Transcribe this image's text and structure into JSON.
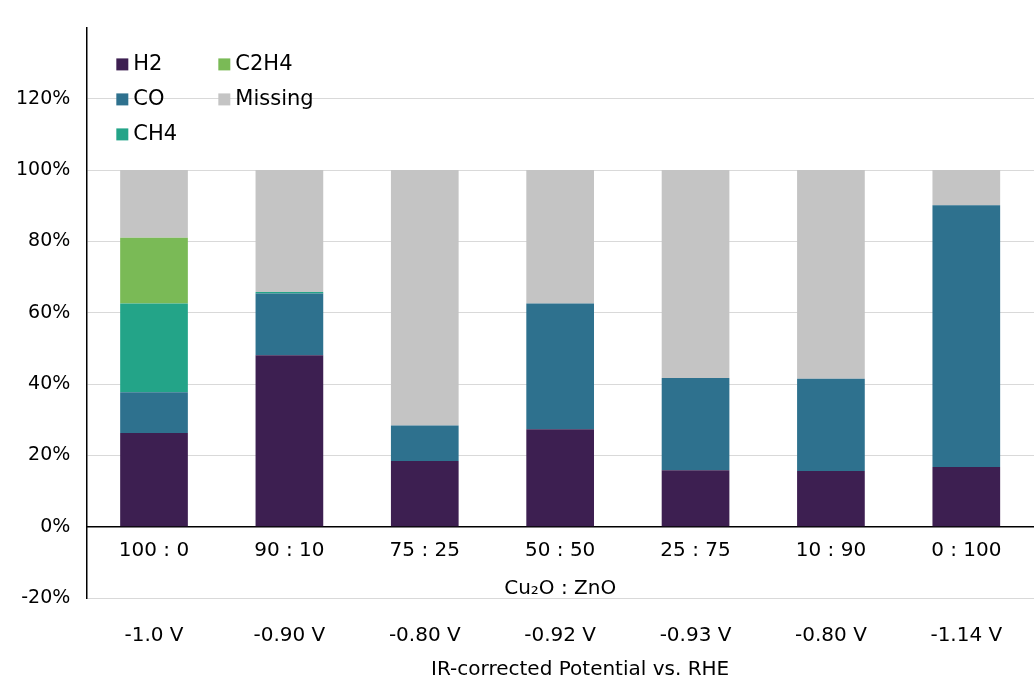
{
  "chart_data": {
    "type": "bar",
    "stacked": true,
    "xlabel": "Cu₂O : ZnO",
    "categories": [
      "100 : 0",
      "90 : 10",
      "75 : 25",
      "50 : 50",
      "25 : 75",
      "10 : 90",
      "0 : 100"
    ],
    "series": [
      {
        "name": "H2",
        "color": "#3d1f51",
        "values": [
          26.3,
          48.1,
          18.4,
          27.3,
          15.8,
          15.6,
          16.7
        ]
      },
      {
        "name": "CO",
        "color": "#2e718e",
        "values": [
          11.4,
          17.3,
          10.0,
          35.3,
          25.9,
          25.9,
          73.4
        ]
      },
      {
        "name": "CH4",
        "color": "#23a488",
        "values": [
          24.9,
          0.4,
          null,
          null,
          null,
          null,
          null
        ]
      },
      {
        "name": "C2H4",
        "color": "#7aba56",
        "values": [
          18.4,
          null,
          null,
          null,
          null,
          null,
          null
        ]
      },
      {
        "name": "Missing",
        "color": "#c4c4c4",
        "values": [
          19.0,
          34.2,
          71.6,
          37.4,
          58.3,
          58.5,
          9.9
        ]
      }
    ],
    "ylim": [
      -20,
      140
    ],
    "yticks": [
      {
        "value": -20,
        "label": "-20%"
      },
      {
        "value": 0,
        "label": "0%"
      },
      {
        "value": 20,
        "label": "20%"
      },
      {
        "value": 40,
        "label": "40%"
      },
      {
        "value": 60,
        "label": "60%"
      },
      {
        "value": 80,
        "label": "80%"
      },
      {
        "value": 100,
        "label": "100%"
      },
      {
        "value": 120,
        "label": "120%"
      }
    ],
    "grid": "y",
    "legend": "top left",
    "annotations": [
      "-1.0 V",
      "-0.90 V",
      "-0.80 V",
      "-0.92 V",
      "-0.93 V",
      "-0.80 V",
      "-1.14 V",
      "IR-corrected Potential vs. RHE"
    ]
  }
}
